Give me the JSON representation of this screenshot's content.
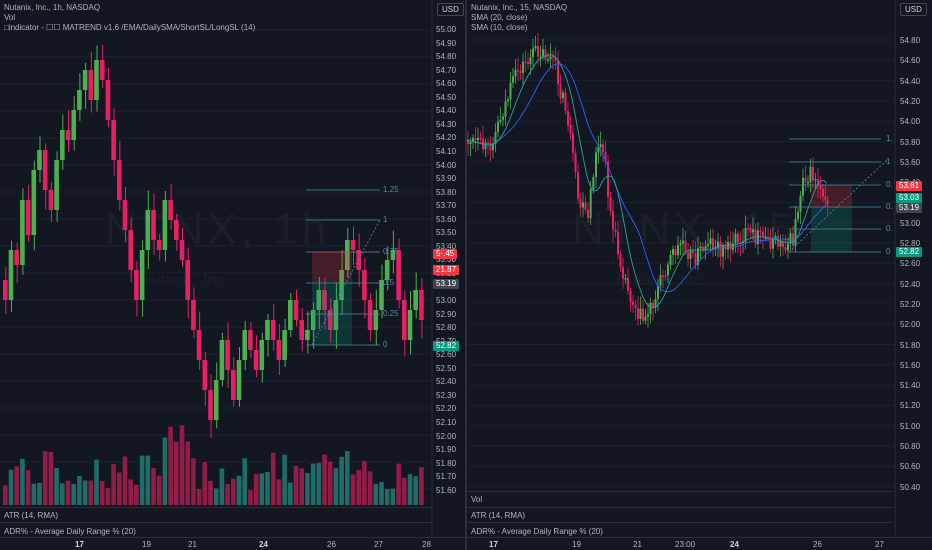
{
  "left": {
    "legend": [
      "Nutanix, Inc., 1h, NASDAQ",
      "Vol",
      "□indicator - ☐☐ MATREND v1.6 /EMA/DailySMA/ShortSL/LongSL (14)"
    ],
    "axis_currency": "USD",
    "prices": [
      "55.00",
      "54.90",
      "54.80",
      "54.70",
      "54.60",
      "54.50",
      "54.40",
      "54.30",
      "54.20",
      "54.10",
      "54.00",
      "53.90",
      "53.80",
      "53.70",
      "53.60",
      "53.50",
      "53.40",
      "53.30",
      "53.20",
      "53.10",
      "53.00",
      "52.90",
      "52.80",
      "52.70",
      "52.60",
      "52.50",
      "52.40",
      "52.30",
      "52.20",
      "52.10",
      "52.00",
      "51.90",
      "51.80",
      "51.70",
      "51.60"
    ],
    "times": [
      {
        "t": "17",
        "bold": true
      },
      {
        "t": "19",
        "bold": false
      },
      {
        "t": "21",
        "bold": false
      },
      {
        "t": "24",
        "bold": true
      },
      {
        "t": "26",
        "bold": false
      },
      {
        "t": "27",
        "bold": false
      },
      {
        "t": "28",
        "bold": false
      }
    ],
    "fib_levels": [
      "1.25",
      "1",
      "0.75",
      "0.5",
      "0.25",
      "0"
    ],
    "tags": {
      "red1": "5·.45",
      "red2": "21.87",
      "gray": "53.19",
      "green": "52.82"
    },
    "indicators": [
      "ATR (14, RMA)",
      "ADR% - Average Daily Range % (20)"
    ],
    "watermark": "NTNX, 1h",
    "watermark_sub": "Nutanix, Inc."
  },
  "right": {
    "legend": [
      "Nutanix, Inc., 15, NASDAQ",
      "SMA (20, close)",
      "SMA (10, close)"
    ],
    "axis_currency": "USD",
    "prices": [
      "54.80",
      "54.60",
      "54.40",
      "54.20",
      "54.00",
      "53.80",
      "53.60",
      "53.40",
      "53.20",
      "53.00",
      "52.80",
      "52.60",
      "52.40",
      "52.20",
      "52.00",
      "51.80",
      "51.60",
      "51.40",
      "51.20",
      "51.00",
      "50.80",
      "50.60",
      "50.40"
    ],
    "times": [
      {
        "t": "17",
        "bold": true
      },
      {
        "t": "19",
        "bold": false
      },
      {
        "t": "21",
        "bold": false
      },
      {
        "t": "23:00",
        "bold": false
      },
      {
        "t": "24",
        "bold": true
      },
      {
        "t": "26",
        "bold": false
      },
      {
        "t": "27",
        "bold": false
      }
    ],
    "fib_levels": [
      "1.",
      "1",
      "0.",
      "0.",
      "0.",
      "0"
    ],
    "tags": {
      "red1": "53.61",
      "green1": "53.03",
      "gray": "53.19",
      "green": "52.82"
    },
    "indicators": [
      "Vol",
      "ATR (14, RMA)",
      "ADR% - Average Daily Range % (20)"
    ],
    "watermark": "NTNX, 15",
    "watermark_sub": "Nutanix, Inc."
  },
  "colors": {
    "up": "#26a69a",
    "bull": "#4caf50",
    "down": "#e91e63",
    "background": "#131722",
    "grid": "#2a2e39",
    "fib": "#4a8fa3",
    "sma20": "#2962ff",
    "sma10": "#26a69a"
  }
}
